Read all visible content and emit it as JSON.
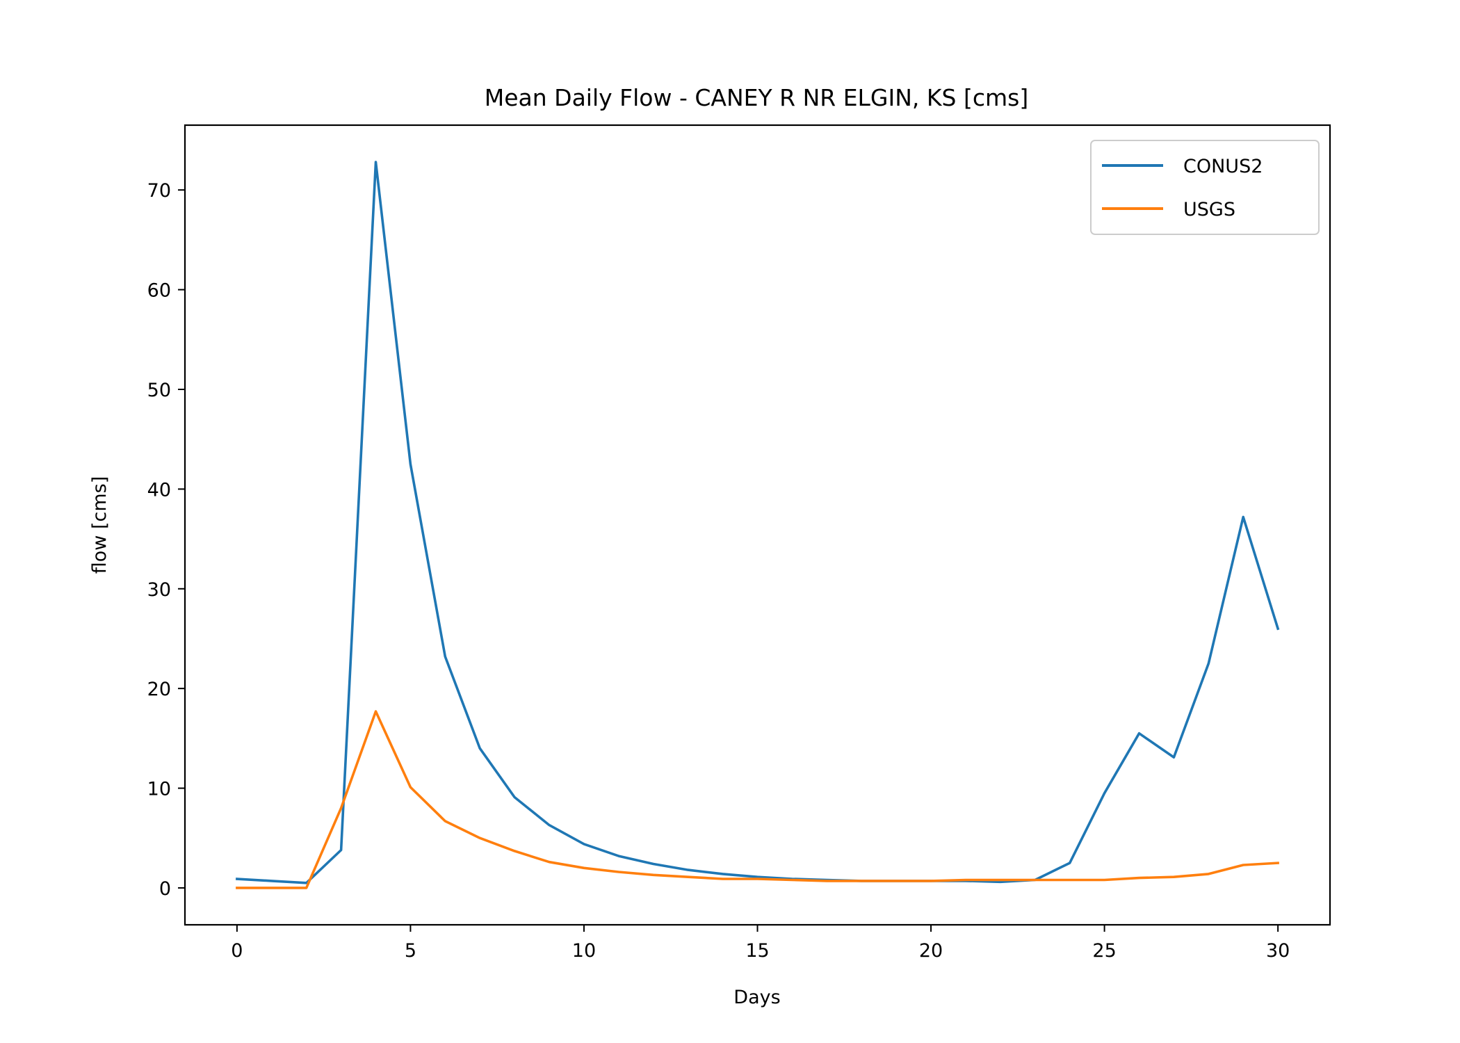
{
  "chart_data": {
    "type": "line",
    "title": "Mean Daily Flow - CANEY R NR ELGIN, KS [cms]",
    "xlabel": "Days",
    "ylabel": "flow [cms]",
    "xlim": [
      -1.5,
      31.5
    ],
    "ylim": [
      -3.7,
      76.5
    ],
    "xticks": [
      0,
      5,
      10,
      15,
      20,
      25,
      30
    ],
    "yticks": [
      0,
      10,
      20,
      30,
      40,
      50,
      60,
      70
    ],
    "grid": false,
    "legend_position": "top-right",
    "x": [
      0,
      1,
      2,
      3,
      4,
      5,
      6,
      7,
      8,
      9,
      10,
      11,
      12,
      13,
      14,
      15,
      16,
      17,
      18,
      19,
      20,
      21,
      22,
      23,
      24,
      25,
      26,
      27,
      28,
      29,
      30
    ],
    "series": [
      {
        "name": "CONUS2",
        "color": "#1f77b4",
        "values": [
          0.9,
          0.7,
          0.5,
          3.8,
          72.8,
          42.5,
          23.2,
          14.0,
          9.1,
          6.3,
          4.4,
          3.2,
          2.4,
          1.8,
          1.4,
          1.1,
          0.9,
          0.8,
          0.7,
          0.7,
          0.7,
          0.7,
          0.6,
          0.8,
          2.5,
          9.5,
          15.5,
          13.1,
          22.5,
          37.2,
          26.0
        ]
      },
      {
        "name": "USGS",
        "color": "#ff7f0e",
        "values": [
          0.0,
          0.0,
          0.0,
          8.0,
          17.7,
          10.1,
          6.7,
          5.0,
          3.7,
          2.6,
          2.0,
          1.6,
          1.3,
          1.1,
          0.9,
          0.9,
          0.8,
          0.7,
          0.7,
          0.7,
          0.7,
          0.8,
          0.8,
          0.8,
          0.8,
          0.8,
          1.0,
          1.1,
          1.4,
          2.3,
          2.5
        ]
      }
    ]
  }
}
